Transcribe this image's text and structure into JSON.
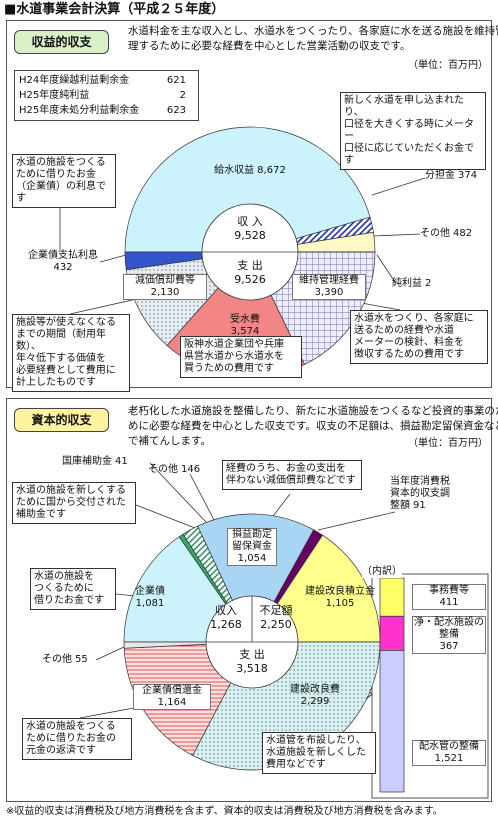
{
  "header": {
    "title": "■水道事業会計決算（平成２５年度）"
  },
  "note": "※収益的収支は消費税及び地方消費税を含まず、資本的収支は消費税及び地方消費税を含みます。",
  "chart_data": [
    {
      "type": "pie",
      "title": "収益的収支",
      "description": [
        "水道料金を主な収入とし、水道水をつくったり、各家庭に水を送る施設を維持管",
        "理するために必要な経費を中心とした営業活動の収支です。"
      ],
      "unit": "（単位：百万円）",
      "categories": [
        "給水収益",
        "分担金",
        "その他",
        "純利益",
        "維持管理経費",
        "受水費",
        "減価償却費等",
        "企業債支払利息"
      ],
      "values": [
        8672,
        374,
        482,
        2,
        3390,
        3574,
        2130,
        432
      ],
      "value_labels": [
        "8,672",
        "374",
        "482",
        "2",
        "3,390",
        "3,574",
        "2,130",
        "432"
      ],
      "halves": [
        "top",
        "top",
        "top",
        "bottom",
        "bottom",
        "bottom",
        "bottom",
        "bottom"
      ],
      "colors": [
        "#ccf2fc",
        "#ffffff",
        "#fff8c4",
        "#333333",
        "#efeeff",
        "#f28585",
        "#e4eef4",
        "#3355cc"
      ],
      "patterns": [
        "solid",
        "diagonal",
        "solid",
        "solid",
        "grid",
        "solid",
        "dots",
        "solid"
      ],
      "center": [
        {
          "label": "収 入",
          "value": 9528,
          "value_label": "9,528"
        },
        {
          "label": "支 出",
          "value": 9526,
          "value_label": "9,526"
        }
      ],
      "table": {
        "rows": [
          [
            "H24年度繰越利益剰余金",
            621
          ],
          [
            "H25年度純利益",
            2
          ],
          [
            "H25年度未処分利益剰余金",
            623
          ]
        ]
      },
      "annotations": [
        [
          "新しく水道を申し込まれたり、",
          "口径を大きくする時にメーター",
          "口径に応じていただくお金です"
        ],
        [
          "水道の施設をつくる",
          "ために借りたお金",
          "（企業債）の利息です"
        ],
        [
          "施設等が使えなくなる",
          "までの期間（耐用年数）、",
          "年々低下する価値を",
          "必要経費として費用に",
          "計上したものです"
        ],
        [
          "水道水をつくり、各家庭に",
          "送るための経費や水道",
          "メーターの検針、料金を",
          "徴収するための費用です"
        ],
        [
          "阪神水道企業団や兵庫",
          "県営水道から水道水を",
          "買うための費用です"
        ]
      ]
    },
    {
      "type": "pie",
      "title": "資本的収支",
      "description": [
        "老朽化した水道施設を整備したり、新たに水道施設をつくるなど投資的事業のた",
        "めに必要な経費を中心とした収支です。収支の不足額は、損益勘定留保資金など",
        "で補てんします。"
      ],
      "unit": "（単位：百万円）",
      "categories": [
        "企業債",
        "国庫補助金",
        "その他",
        "損益勘定留保資金",
        "当年度消費税資本的収支調整額",
        "建設改良積立金",
        "建設改良費",
        "企業債償還金",
        "その他"
      ],
      "values": [
        1081,
        41,
        146,
        1054,
        91,
        1105,
        2299,
        1164,
        55
      ],
      "value_labels": [
        "1,081",
        "41",
        "146",
        "1,054",
        "91",
        "1,105",
        "2,299",
        "1,164",
        "55"
      ],
      "halves": [
        "top",
        "top",
        "top",
        "top",
        "top",
        "top",
        "bottom",
        "bottom",
        "bottom"
      ],
      "colors": [
        "#ccf2fc",
        "#33aa66",
        "#ffffff",
        "#a9d5f5",
        "#660066",
        "#ffff8c",
        "#d6f2f2",
        "#ffe0e0",
        "#e8e8e8"
      ],
      "patterns": [
        "solid",
        "solid",
        "greendiag",
        "solid",
        "solid",
        "solid",
        "dots",
        "hlines",
        "solid"
      ],
      "center": [
        {
          "label": "収入",
          "value": 1268,
          "value_label": "1,268"
        },
        {
          "label": "不足額",
          "value": 2250,
          "value_label": "2,250"
        },
        {
          "label": "支 出",
          "value": 3518,
          "value_label": "3,518"
        }
      ],
      "annotations": [
        [
          "経費のうち、お金の支出を",
          "伴わない減価償却費などです"
        ],
        [
          "水道の施設を新しくする",
          "ために国から交付された",
          "補助金です"
        ],
        [
          "水道の施設を",
          "つくるために",
          "借りたお金です"
        ],
        [
          "水道の施設をつくる",
          "ために借りたお金の",
          "元金の返済です"
        ],
        [
          "水道管を布設したり、",
          "水道施設を新しくした",
          "費用などです"
        ]
      ]
    },
    {
      "type": "stacked_bar",
      "title": "（内訳）",
      "categories": [
        "事務費等",
        "浄・配水施設の整備",
        "配水管の整備"
      ],
      "values": [
        411,
        367,
        1521
      ],
      "value_labels": [
        "411",
        "367",
        "1,521"
      ],
      "colors": [
        "#ffff66",
        "#ff33cc",
        "#ccccff"
      ]
    }
  ]
}
